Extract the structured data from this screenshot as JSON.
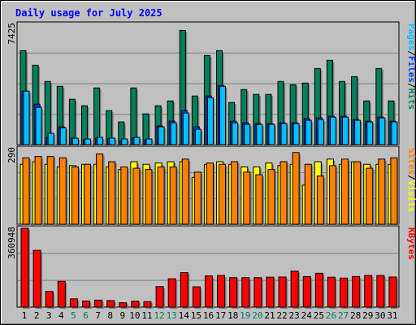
{
  "chart_data": {
    "type": "bar",
    "title": "Daily usage for July 2025",
    "colors": {
      "background": "#c0c0c0",
      "title": "#0000ff",
      "hits": "#00805c",
      "files": "#0040ff",
      "pages": "#00c0ff",
      "visits": "#ffff00",
      "sites": "#ff8000",
      "kbytes": "#ff0000",
      "weekend_label": "#00805c",
      "weekday_label": "#000000"
    },
    "x": [
      "1",
      "2",
      "3",
      "4",
      "5",
      "6",
      "7",
      "8",
      "9",
      "10",
      "11",
      "12",
      "13",
      "14",
      "15",
      "16",
      "17",
      "18",
      "19",
      "20",
      "21",
      "22",
      "23",
      "24",
      "25",
      "26",
      "27",
      "28",
      "29",
      "30",
      "31"
    ],
    "weekend_days": [
      "5",
      "6",
      "12",
      "13",
      "19",
      "20",
      "26",
      "27"
    ],
    "panels": [
      {
        "name": "hits-files-pages",
        "ymax_label": "7425",
        "ylim": [
          0,
          7425
        ],
        "right_label": [
          {
            "text": "Pages",
            "color": "#00c0ff"
          },
          {
            "text": "/",
            "color": "#000000"
          },
          {
            "text": "Files",
            "color": "#0040ff"
          },
          {
            "text": "/",
            "color": "#000000"
          },
          {
            "text": "Hits",
            "color": "#00805c"
          }
        ],
        "series": [
          {
            "name": "Hits",
            "values": [
              5800,
              4900,
              3900,
              3600,
              2800,
              2400,
              3500,
              2100,
              1400,
              3500,
              1900,
              2400,
              2700,
              7050,
              3000,
              5500,
              5800,
              2600,
              3400,
              3100,
              3100,
              3900,
              3700,
              3800,
              4700,
              5200,
              3900,
              4200,
              2700,
              4700,
              2700
            ]
          },
          {
            "name": "Files",
            "values": [
              3300,
              2500,
              450,
              1100,
              400,
              300,
              400,
              380,
              240,
              420,
              300,
              1150,
              1450,
              2100,
              1100,
              3000,
              3650,
              1450,
              1350,
              1300,
              1300,
              1350,
              1350,
              1600,
              1650,
              1750,
              1750,
              1550,
              1450,
              1700,
              1450
            ]
          },
          {
            "name": "Pages",
            "values": [
              3300,
              2300,
              700,
              1050,
              400,
              350,
              450,
              400,
              350,
              450,
              350,
              1100,
              1350,
              1950,
              950,
              2900,
              3600,
              1350,
              1250,
              1250,
              1250,
              1300,
              1300,
              1500,
              1550,
              1700,
              1700,
              1500,
              1400,
              1650,
              1400
            ]
          }
        ]
      },
      {
        "name": "visits-sites",
        "ymax_label": "290",
        "ylim": [
          0,
          290
        ],
        "right_label": [
          {
            "text": "Sites",
            "color": "#ff8000"
          },
          {
            "text": "/",
            "color": "#000000"
          },
          {
            "text": "Visits",
            "color": "#ffff00"
          }
        ],
        "series": [
          {
            "name": "Visits",
            "values": [
              230,
              240,
              230,
              220,
              225,
              230,
              230,
              220,
              210,
              240,
              230,
              235,
              240,
              240,
              180,
              230,
              240,
              230,
              220,
              220,
              235,
              225,
              230,
              150,
              240,
              250,
              230,
              240,
              230,
              230,
              230
            ]
          },
          {
            "name": "Sites",
            "values": [
              255,
              260,
              260,
              255,
              220,
              230,
              270,
              240,
              220,
              215,
              210,
              220,
              220,
              250,
              200,
              235,
              230,
              240,
              200,
              190,
              210,
              240,
              275,
              230,
              185,
              225,
              250,
              240,
              215,
              250,
              255
            ]
          }
        ]
      },
      {
        "name": "kbytes",
        "ymax_label": "360948",
        "ylim": [
          0,
          360948
        ],
        "right_label": [
          {
            "text": "KBytes",
            "color": "#ff0000"
          }
        ],
        "series": [
          {
            "name": "KBytes",
            "values": [
              360948,
              260000,
              72000,
              118000,
              38000,
              28000,
              32000,
              30000,
              20000,
              27000,
              25000,
              94000,
              130000,
              158000,
              93000,
              143000,
              145000,
              135000,
              135000,
              135000,
              137000,
              138000,
              165000,
              140000,
              155000,
              137000,
              133000,
              140000,
              145000,
              145000,
              138000
            ]
          }
        ]
      }
    ]
  }
}
